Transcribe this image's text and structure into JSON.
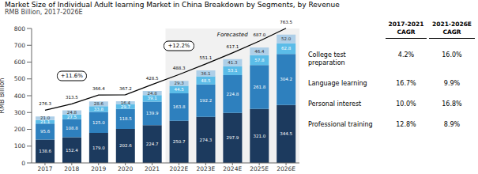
{
  "chart_data": {
    "type": "bar",
    "stacked": true,
    "data_labels": true,
    "grid": false,
    "title": "Market Size of Individual Adult learning Market in China Breakdown by Segments, by Revenue",
    "subtitle": "RMB Billion, 2017-2026E",
    "ylabel": "RMB Billion",
    "categories": [
      "2017",
      "2018",
      "2019",
      "2020",
      "2021",
      "2022E",
      "2023E",
      "2024E",
      "2025E",
      "2026E"
    ],
    "series": [
      {
        "name": "Professional training",
        "color": "#1c3a5e",
        "values": [
          138.6,
          152.4,
          179.0,
          202.6,
          224.7,
          250.7,
          274.3,
          297.9,
          321.0,
          344.5
        ],
        "value_labels": [
          "138.6",
          "152.4",
          "179.0",
          "202.6",
          "224.7",
          "250.7",
          "274.3",
          "297.9",
          "321.0",
          "344.5"
        ],
        "cagr": [
          "12.8%",
          "8.9%"
        ]
      },
      {
        "name": "Personal interest",
        "color": "#2e80be",
        "values": [
          95.6,
          108.8,
          125.0,
          118.5,
          139.9,
          163.8,
          192.2,
          224.8,
          261.8,
          304.2
        ],
        "value_labels": [
          "95.6",
          "108.8",
          "125.0",
          "118.5",
          "139.9",
          "163.8",
          "192.2",
          "224.8",
          "261.8",
          "304.2"
        ],
        "cagr": [
          "10.0%",
          "16.8%"
        ]
      },
      {
        "name": "Language learning",
        "color": "#5bbce8",
        "values": [
          21.1,
          27.5,
          33.8,
          29.7,
          39.1,
          44.5,
          48.5,
          53.1,
          57.8,
          62.8
        ],
        "value_labels": [
          "21.1",
          "27.5",
          "33.8",
          "29.7",
          "39.1",
          "44.5",
          "48.5",
          "53.1",
          "57.8",
          "62.8"
        ],
        "cagr": [
          "16.7%",
          "9.9%"
        ]
      },
      {
        "name": "College test preparation",
        "color": "#aecfe8",
        "values": [
          21.0,
          24.8,
          28.6,
          16.4,
          24.8,
          29.3,
          36.1,
          41.3,
          46.4,
          52.0
        ],
        "value_labels": [
          "21.0",
          "24.8",
          "28.6",
          "16.4",
          "24.8",
          "29.3",
          "36.1",
          "41.3",
          "46.4",
          "52.0"
        ],
        "cagr": [
          "4.2%",
          "16.0%"
        ]
      }
    ],
    "totals": {
      "values": [
        276.3,
        313.5,
        366.4,
        367.2,
        428.5,
        488.3,
        551.1,
        617.1,
        687.0,
        763.5
      ],
      "value_labels": [
        "276.3",
        "313.5",
        "366.4",
        "367.2",
        "428.5",
        "488.3",
        "551.1",
        "617.1",
        "687.0",
        "763.5"
      ]
    },
    "cagr_headers": [
      "2017-2021\nCAGR",
      "2021-2026E\nCAGR"
    ],
    "cagr_labels": [
      "+11.6%",
      "+12.2%"
    ],
    "annotations": [
      {
        "text": "Forecasted",
        "from": "2022E",
        "to": "2026E"
      }
    ],
    "ylim": [
      0,
      800
    ],
    "yticks": [
      0,
      100,
      200,
      300,
      400,
      500,
      600,
      700,
      800
    ]
  }
}
